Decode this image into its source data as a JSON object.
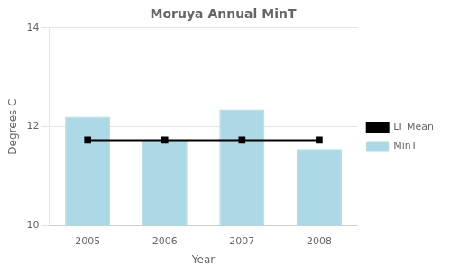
{
  "chart_data": {
    "type": "bar",
    "title": "Moruya Annual MinT",
    "xlabel": "Year",
    "ylabel": "Degrees C",
    "categories": [
      "2005",
      "2006",
      "2007",
      "2008"
    ],
    "series": [
      {
        "name": "MinT",
        "type": "bar",
        "color": "#add8e6",
        "values": [
          12.2,
          11.72,
          12.35,
          11.55
        ]
      },
      {
        "name": "LT Mean",
        "type": "line",
        "color": "#000000",
        "marker": "square",
        "line_style": "solid",
        "values": [
          11.73,
          11.73,
          11.73,
          11.73
        ]
      }
    ],
    "ylim": [
      10,
      14
    ],
    "yticks": [
      10,
      12,
      14
    ],
    "grid": true,
    "legend": "right"
  }
}
